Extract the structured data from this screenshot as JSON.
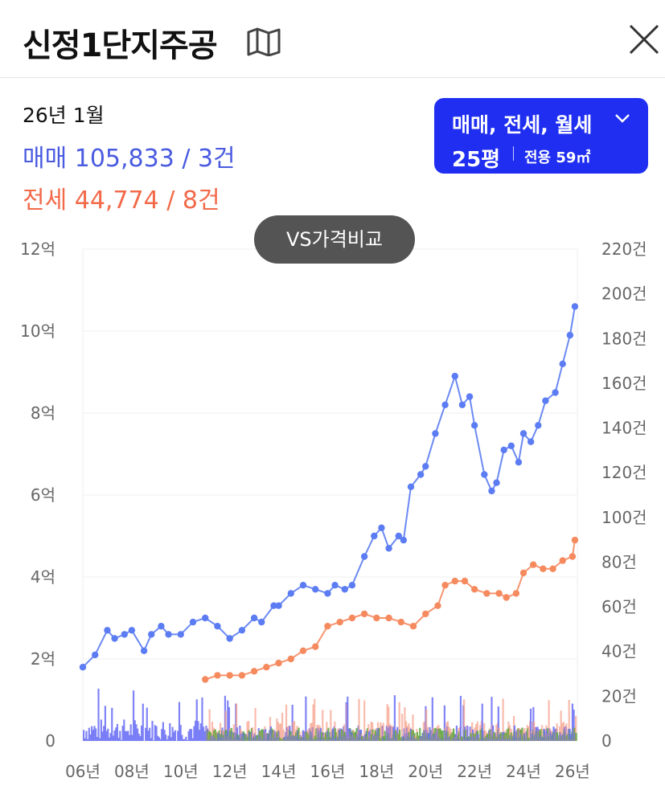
{
  "header": {
    "title": "신정1단지주공",
    "map_icon": "map-icon",
    "close_icon": "close-icon"
  },
  "summary": {
    "period": "26년 1월",
    "sale": "매매 105,833 / 3건",
    "jeonse": "전세 44,774 / 8건"
  },
  "filter": {
    "types": "매매, 전세, 월세",
    "size": "25평",
    "area": "전용 59㎡"
  },
  "vs_button": "VS가격비교",
  "colors": {
    "sale": "#5b7cf2",
    "jeonse": "#f58a5f",
    "sale_volume": "#6a6ef5",
    "jeonse_volume": "#f7a08a",
    "wolse_volume": "#5aa83c",
    "filter_bg": "#1f2ef0"
  },
  "chart_data": {
    "type": "line",
    "x_ticks": [
      "06년",
      "08년",
      "10년",
      "12년",
      "14년",
      "16년",
      "18년",
      "20년",
      "22년",
      "24년",
      "26년"
    ],
    "y_left_ticks": [
      "0",
      "2억",
      "4억",
      "6억",
      "8억",
      "10억",
      "12억"
    ],
    "y_right_ticks": [
      "0",
      "20건",
      "40건",
      "60건",
      "80건",
      "100건",
      "120건",
      "140건",
      "160건",
      "180건",
      "200건",
      "220건"
    ],
    "xlim": [
      2006,
      2026.2
    ],
    "ylim_left": [
      0,
      12
    ],
    "ylim_right": [
      0,
      220
    ],
    "grid": true,
    "series": [
      {
        "name": "매매",
        "axis": "left",
        "x": [
          2006.0,
          2006.5,
          2007.0,
          2007.3,
          2007.7,
          2008.0,
          2008.5,
          2008.8,
          2009.2,
          2009.5,
          2010.0,
          2010.5,
          2011.0,
          2011.5,
          2012.0,
          2012.5,
          2013.0,
          2013.3,
          2013.8,
          2014.0,
          2014.5,
          2015.0,
          2015.5,
          2016.0,
          2016.3,
          2016.7,
          2017.0,
          2017.5,
          2017.9,
          2018.2,
          2018.5,
          2018.9,
          2019.1,
          2019.4,
          2019.8,
          2020.0,
          2020.4,
          2020.8,
          2021.2,
          2021.5,
          2021.8,
          2022.0,
          2022.4,
          2022.7,
          2022.9,
          2023.2,
          2023.5,
          2023.8,
          2024.0,
          2024.3,
          2024.6,
          2024.9,
          2025.3,
          2025.6,
          2025.9,
          2026.1
        ],
        "values": [
          1.8,
          2.1,
          2.7,
          2.5,
          2.6,
          2.7,
          2.2,
          2.6,
          2.8,
          2.6,
          2.6,
          2.9,
          3.0,
          2.8,
          2.5,
          2.7,
          3.0,
          2.9,
          3.3,
          3.3,
          3.6,
          3.8,
          3.7,
          3.6,
          3.8,
          3.7,
          3.8,
          4.5,
          5.0,
          5.2,
          4.7,
          5.0,
          4.9,
          6.2,
          6.5,
          6.7,
          7.5,
          8.2,
          8.9,
          8.2,
          8.4,
          7.7,
          6.5,
          6.1,
          6.3,
          7.1,
          7.2,
          6.8,
          7.5,
          7.3,
          7.7,
          8.3,
          8.5,
          9.2,
          9.9,
          10.6
        ]
      },
      {
        "name": "전세",
        "axis": "left",
        "x": [
          2011.0,
          2011.5,
          2012.0,
          2012.5,
          2013.0,
          2013.5,
          2014.0,
          2014.5,
          2015.0,
          2015.5,
          2016.0,
          2016.5,
          2017.0,
          2017.5,
          2018.0,
          2018.5,
          2019.0,
          2019.5,
          2020.0,
          2020.5,
          2020.8,
          2021.2,
          2021.6,
          2022.0,
          2022.5,
          2023.0,
          2023.3,
          2023.7,
          2024.0,
          2024.4,
          2024.8,
          2025.2,
          2025.6,
          2026.0,
          2026.1
        ],
        "values": [
          1.5,
          1.6,
          1.6,
          1.6,
          1.7,
          1.8,
          1.9,
          2.0,
          2.2,
          2.3,
          2.8,
          2.9,
          3.0,
          3.1,
          3.0,
          3.0,
          2.9,
          2.8,
          3.1,
          3.3,
          3.8,
          3.9,
          3.9,
          3.7,
          3.6,
          3.6,
          3.5,
          3.6,
          4.1,
          4.3,
          4.2,
          4.2,
          4.4,
          4.5,
          4.9
        ]
      }
    ]
  }
}
